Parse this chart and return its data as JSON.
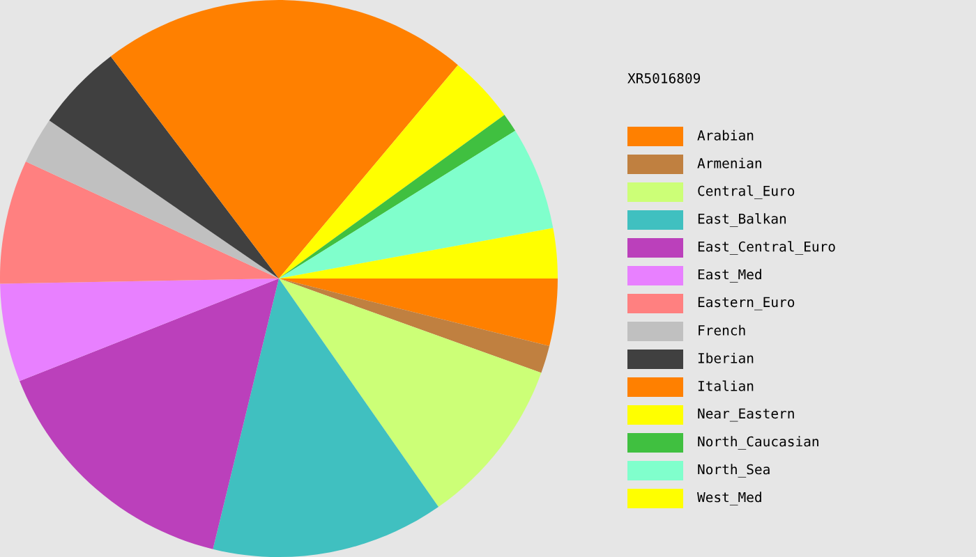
{
  "chart_data": {
    "type": "pie",
    "subtitle": "XR5016809",
    "categories": [
      "Arabian",
      "Armenian",
      "Central_Euro",
      "East_Balkan",
      "East_Central_Euro",
      "East_Med",
      "Eastern_Euro",
      "French",
      "Iberian",
      "Italian",
      "Near_Eastern",
      "North_Caucasian",
      "North_Sea",
      "West_Med"
    ],
    "values": [
      3.9,
      1.6,
      9.8,
      13.5,
      15.2,
      5.7,
      7.2,
      2.7,
      5.1,
      21.4,
      3.9,
      1.1,
      6.0,
      2.9
    ],
    "colors": [
      "#ff8000",
      "#c08040",
      "#ccff77",
      "#40c0c0",
      "#bb40bb",
      "#e880ff",
      "#ff8080",
      "#c0c0c0",
      "#404040",
      "#ff8000",
      "#ffff00",
      "#40c040",
      "#80ffcc",
      "#ffff00"
    ],
    "legend": "right"
  }
}
